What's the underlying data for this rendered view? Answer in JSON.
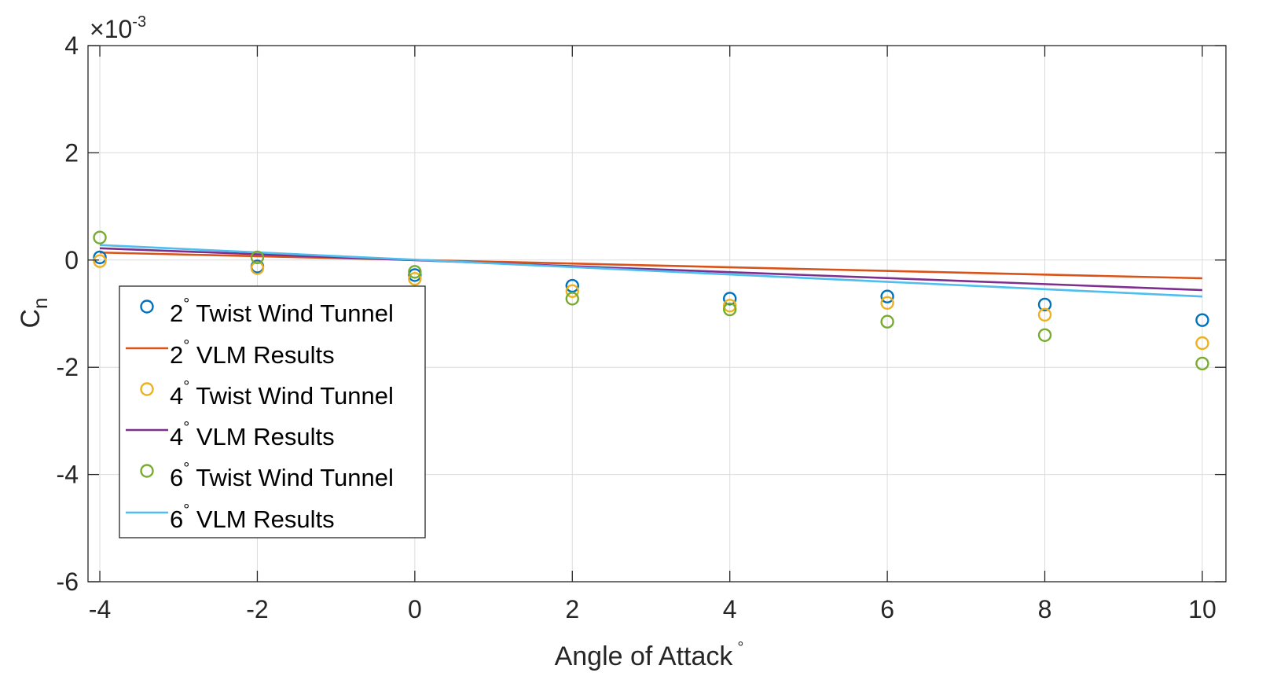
{
  "chart_data": {
    "type": "scatter",
    "xlabel": "Angle of Attack",
    "xlabel_suffix": "°",
    "ylabel": "C",
    "ylabel_sub": "n",
    "y_exponent_prefix": "×10",
    "y_exponent": "-3",
    "xlim": [
      -4.15,
      10.3
    ],
    "ylim": [
      -6,
      4
    ],
    "x_ticks": [
      -4,
      -2,
      0,
      2,
      4,
      6,
      8,
      10
    ],
    "x_tick_labels": [
      "-4",
      "-2",
      "0",
      "2",
      "4",
      "6",
      "8",
      "10"
    ],
    "y_ticks": [
      -6,
      -4,
      -2,
      0,
      2,
      4
    ],
    "y_tick_labels": [
      "-6",
      "-4",
      "-2",
      "0",
      "2",
      "4"
    ],
    "grid": true,
    "legend_placement": "middle-left",
    "series": [
      {
        "name_num": "2",
        "name_deg": "°",
        "name_rest": " Twist Wind Tunnel",
        "kind": "marker",
        "color": "#0072BD",
        "x": [
          -4,
          -2,
          0,
          2,
          4,
          6,
          8,
          10
        ],
        "y": [
          0.05,
          -0.12,
          -0.28,
          -0.48,
          -0.72,
          -0.68,
          -0.83,
          -1.12
        ]
      },
      {
        "name_num": "2",
        "name_deg": "°",
        "name_rest": " VLM Results",
        "kind": "line",
        "color": "#D95319",
        "x": [
          -4,
          10
        ],
        "y": [
          0.14,
          -0.34
        ]
      },
      {
        "name_num": "4",
        "name_deg": "°",
        "name_rest": " Twist Wind Tunnel",
        "kind": "marker",
        "color": "#EDB120",
        "x": [
          -4,
          -2,
          0,
          2,
          4,
          6,
          8,
          10
        ],
        "y": [
          -0.02,
          -0.15,
          -0.35,
          -0.58,
          -0.85,
          -0.8,
          -1.02,
          -1.55
        ]
      },
      {
        "name_num": "4",
        "name_deg": "°",
        "name_rest": " VLM Results",
        "kind": "line",
        "color": "#7E2F8E",
        "x": [
          -4,
          10
        ],
        "y": [
          0.22,
          -0.56
        ]
      },
      {
        "name_num": "6",
        "name_deg": "°",
        "name_rest": " Twist Wind Tunnel",
        "kind": "marker",
        "color": "#77AC30",
        "x": [
          -4,
          -2,
          0,
          2,
          4,
          6,
          8,
          10
        ],
        "y": [
          0.42,
          0.05,
          -0.22,
          -0.72,
          -0.92,
          -1.15,
          -1.4,
          -1.93
        ]
      },
      {
        "name_num": "6",
        "name_deg": "°",
        "name_rest": " VLM Results",
        "kind": "line",
        "color": "#4DBEEE",
        "x": [
          -4,
          10
        ],
        "y": [
          0.28,
          -0.68
        ]
      }
    ]
  }
}
